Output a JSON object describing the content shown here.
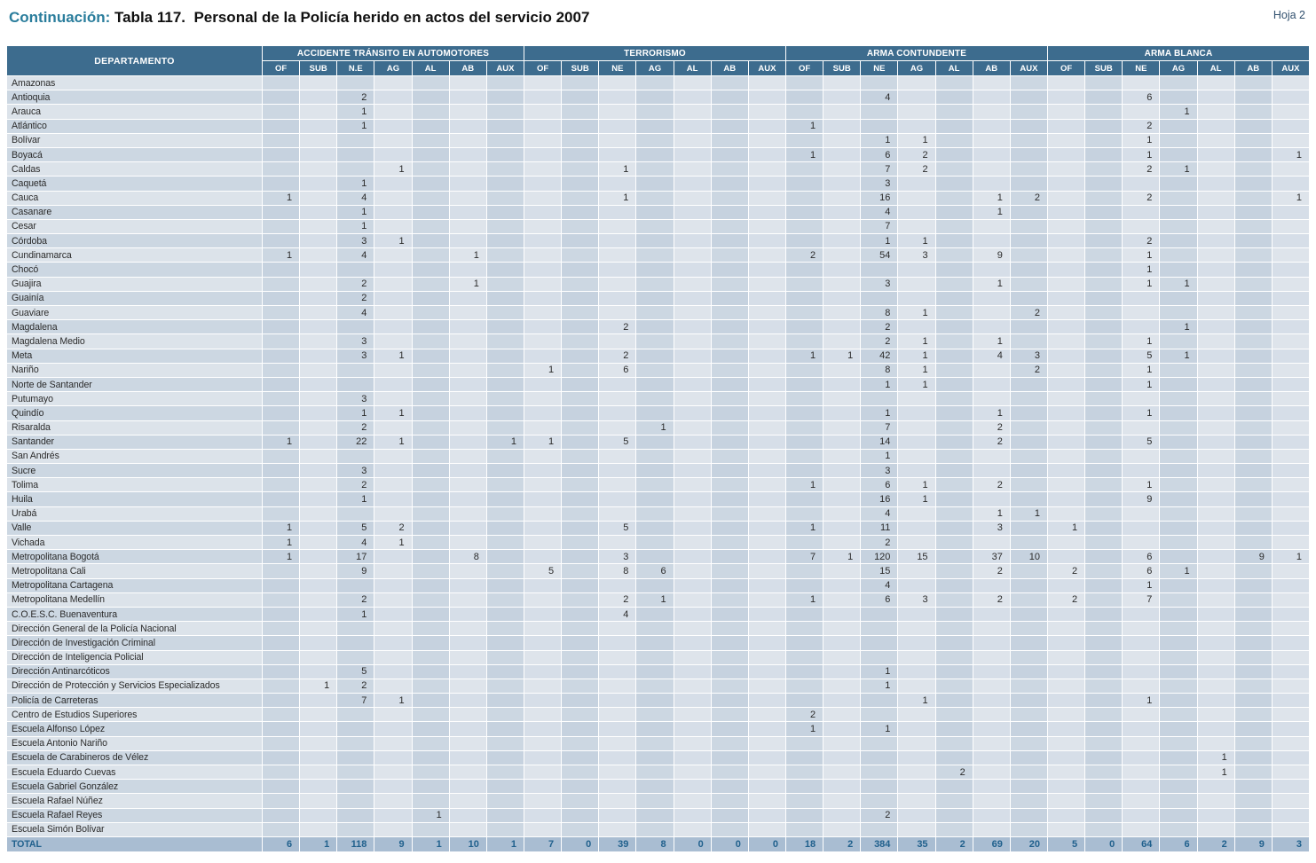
{
  "page": {
    "continuation_label": "Continuación: ",
    "title": "Tabla 117.  Personal de la Policía herido en actos del servicio 2007",
    "sheet_label": "Hoja 2"
  },
  "colors": {
    "header_bg": "#3d6c8e",
    "header_text": "#ffffff",
    "title_accent": "#2a7d9c",
    "title_text": "#111111",
    "total_bg": "#a9bdd2",
    "total_text": "#21618d",
    "body_text": "#2b2b2b",
    "row_even_name": "#dce3ea",
    "row_odd_name": "#ccd7e2",
    "cell_even_row_dark": "#ccd7e2",
    "cell_even_row_light": "#dee4eb",
    "cell_odd_row_dark": "#c6d2df",
    "cell_odd_row_light": "#d6dee8"
  },
  "table": {
    "row_header": "DEPARTAMENTO",
    "groups": [
      {
        "label": "ACCIDENTE TRÁNSITO EN AUTOMOTORES",
        "cols": [
          "OF",
          "SUB",
          "N.E",
          "AG",
          "AL",
          "AB",
          "AUX"
        ]
      },
      {
        "label": "TERRORISMO",
        "cols": [
          "OF",
          "SUB",
          "NE",
          "AG",
          "AL",
          "AB",
          "AUX"
        ]
      },
      {
        "label": "ARMA CONTUNDENTE",
        "cols": [
          "OF",
          "SUB",
          "NE",
          "AG",
          "AL",
          "AB",
          "AUX"
        ]
      },
      {
        "label": "ARMA BLANCA",
        "cols": [
          "OF",
          "SUB",
          "NE",
          "AG",
          "AL",
          "AB",
          "AUX"
        ]
      }
    ],
    "rows": [
      {
        "name": "Amazonas",
        "cells": {}
      },
      {
        "name": "Antioquia",
        "cells": {
          "2": 2,
          "16": 4,
          "23": 6
        }
      },
      {
        "name": "Arauca",
        "cells": {
          "2": 1,
          "24": 1
        }
      },
      {
        "name": "Atlántico",
        "cells": {
          "2": 1,
          "14": 1,
          "23": 2
        }
      },
      {
        "name": "Bolívar",
        "cells": {
          "16": 1,
          "17": 1,
          "23": 1
        }
      },
      {
        "name": "Boyacá",
        "cells": {
          "14": 1,
          "16": 6,
          "17": 2,
          "23": 1,
          "27": 1
        }
      },
      {
        "name": "Caldas",
        "cells": {
          "3": 1,
          "9": 1,
          "16": 7,
          "17": 2,
          "23": 2,
          "24": 1
        }
      },
      {
        "name": "Caquetá",
        "cells": {
          "2": 1,
          "16": 3
        }
      },
      {
        "name": "Cauca",
        "cells": {
          "0": 1,
          "2": 4,
          "9": 1,
          "16": 16,
          "19": 1,
          "20": 2,
          "23": 2,
          "27": 1
        }
      },
      {
        "name": "Casanare",
        "cells": {
          "2": 1,
          "16": 4,
          "19": 1
        }
      },
      {
        "name": "Cesar",
        "cells": {
          "2": 1,
          "16": 7
        }
      },
      {
        "name": "Córdoba",
        "cells": {
          "2": 3,
          "3": 1,
          "16": 1,
          "17": 1,
          "23": 2
        }
      },
      {
        "name": "Cundinamarca",
        "cells": {
          "0": 1,
          "2": 4,
          "5": 1,
          "14": 2,
          "16": 54,
          "17": 3,
          "19": 9,
          "23": 1
        }
      },
      {
        "name": "Chocó",
        "cells": {
          "23": 1
        }
      },
      {
        "name": "Guajira",
        "cells": {
          "2": 2,
          "5": 1,
          "16": 3,
          "19": 1,
          "23": 1,
          "24": 1
        }
      },
      {
        "name": "Guainía",
        "cells": {
          "2": 2
        }
      },
      {
        "name": "Guaviare",
        "cells": {
          "2": 4,
          "16": 8,
          "17": 1,
          "20": 2
        }
      },
      {
        "name": "Magdalena",
        "cells": {
          "9": 2,
          "16": 2,
          "24": 1
        }
      },
      {
        "name": "Magdalena Medio",
        "cells": {
          "2": 3,
          "16": 2,
          "17": 1,
          "19": 1,
          "23": 1
        }
      },
      {
        "name": "Meta",
        "cells": {
          "2": 3,
          "3": 1,
          "9": 2,
          "14": 1,
          "15": 1,
          "16": 42,
          "17": 1,
          "19": 4,
          "20": 3,
          "23": 5,
          "24": 1
        }
      },
      {
        "name": "Nariño",
        "cells": {
          "7": 1,
          "9": 6,
          "16": 8,
          "17": 1,
          "20": 2,
          "23": 1
        }
      },
      {
        "name": "Norte de Santander",
        "cells": {
          "16": 1,
          "17": 1,
          "23": 1
        }
      },
      {
        "name": "Putumayo",
        "cells": {
          "2": 3
        }
      },
      {
        "name": "Quindío",
        "cells": {
          "2": 1,
          "3": 1,
          "16": 1,
          "19": 1,
          "23": 1
        }
      },
      {
        "name": "Risaralda",
        "cells": {
          "2": 2,
          "10": 1,
          "16": 7,
          "19": 2
        }
      },
      {
        "name": "Santander",
        "cells": {
          "0": 1,
          "2": 22,
          "3": 1,
          "6": 1,
          "7": 1,
          "9": 5,
          "16": 14,
          "19": 2,
          "23": 5
        }
      },
      {
        "name": "San Andrés",
        "cells": {
          "16": 1
        }
      },
      {
        "name": "Sucre",
        "cells": {
          "2": 3,
          "16": 3
        }
      },
      {
        "name": "Tolima",
        "cells": {
          "2": 2,
          "14": 1,
          "16": 6,
          "17": 1,
          "19": 2,
          "23": 1
        }
      },
      {
        "name": "Huila",
        "cells": {
          "2": 1,
          "16": 16,
          "17": 1,
          "23": 9
        }
      },
      {
        "name": "Urabá",
        "cells": {
          "16": 4,
          "19": 1,
          "20": 1
        }
      },
      {
        "name": "Valle",
        "cells": {
          "0": 1,
          "2": 5,
          "3": 2,
          "9": 5,
          "14": 1,
          "16": 11,
          "19": 3,
          "21": 1
        }
      },
      {
        "name": "Vichada",
        "cells": {
          "0": 1,
          "2": 4,
          "3": 1,
          "16": 2
        }
      },
      {
        "name": "Metropolitana Bogotá",
        "cells": {
          "0": 1,
          "2": 17,
          "5": 8,
          "9": 3,
          "14": 7,
          "15": 1,
          "16": 120,
          "17": 15,
          "19": 37,
          "20": 10,
          "23": 6,
          "26": 9,
          "27": 1
        }
      },
      {
        "name": "Metropolitana Cali",
        "cells": {
          "2": 9,
          "7": 5,
          "9": 8,
          "10": 6,
          "16": 15,
          "19": 2,
          "21": 2,
          "23": 6,
          "24": 1
        }
      },
      {
        "name": "Metropolitana Cartagena",
        "cells": {
          "16": 4,
          "23": 1
        }
      },
      {
        "name": "Metropolitana Medellín",
        "cells": {
          "2": 2,
          "9": 2,
          "10": 1,
          "14": 1,
          "16": 6,
          "17": 3,
          "19": 2,
          "21": 2,
          "23": 7
        }
      },
      {
        "name": "C.O.E.S.C. Buenaventura",
        "cells": {
          "2": 1,
          "9": 4
        }
      },
      {
        "name": "Dirección General de la Policía Nacional",
        "cells": {}
      },
      {
        "name": "Dirección de Investigación Criminal",
        "cells": {}
      },
      {
        "name": "Dirección de Inteligencia Policial",
        "cells": {}
      },
      {
        "name": "Dirección Antinarcóticos",
        "cells": {
          "2": 5,
          "16": 1
        }
      },
      {
        "name": "Dirección de Protección y Servicios Especializados",
        "cells": {
          "1": 1,
          "2": 2,
          "16": 1
        }
      },
      {
        "name": "Policía de Carreteras",
        "cells": {
          "2": 7,
          "3": 1,
          "17": 1,
          "23": 1
        }
      },
      {
        "name": "Centro de Estudios Superiores",
        "cells": {
          "14": 2
        }
      },
      {
        "name": "Escuela Alfonso López",
        "cells": {
          "14": 1,
          "16": 1
        }
      },
      {
        "name": "Escuela Antonio Nariño",
        "cells": {}
      },
      {
        "name": "Escuela de Carabineros de Vélez",
        "cells": {
          "25": 1
        }
      },
      {
        "name": "Escuela Eduardo Cuevas",
        "cells": {
          "18": 2,
          "25": 1
        }
      },
      {
        "name": "Escuela Gabriel González",
        "cells": {}
      },
      {
        "name": "Escuela Rafael Núñez",
        "cells": {}
      },
      {
        "name": "Escuela Rafael Reyes",
        "cells": {
          "4": 1,
          "16": 2
        }
      },
      {
        "name": "Escuela Simón Bolívar",
        "cells": {}
      }
    ],
    "total": {
      "label": "TOTAL",
      "values": [
        6,
        1,
        118,
        9,
        1,
        10,
        1,
        7,
        0,
        39,
        8,
        0,
        0,
        0,
        18,
        2,
        384,
        35,
        2,
        69,
        20,
        5,
        0,
        64,
        6,
        2,
        9,
        3
      ]
    }
  }
}
